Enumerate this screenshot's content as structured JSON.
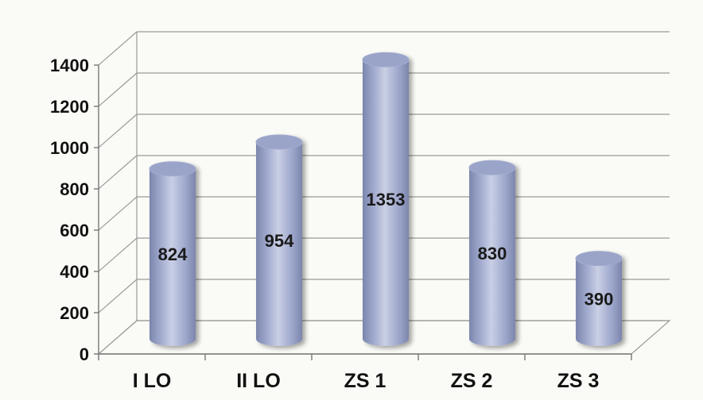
{
  "chart_data": {
    "type": "bar",
    "style": "3d-cylinder",
    "categories": [
      "I LO",
      "II LO",
      "ZS 1",
      "ZS 2",
      "ZS 3"
    ],
    "values": [
      824,
      954,
      1353,
      830,
      390
    ],
    "data_labels": [
      "824",
      "954",
      "1353",
      "830",
      "390"
    ],
    "title": "",
    "xlabel": "",
    "ylabel": "",
    "ylim": [
      0,
      1400
    ],
    "yticks": [
      0,
      200,
      400,
      600,
      800,
      1000,
      1200,
      1400
    ],
    "ytick_labels": [
      "0",
      "200",
      "400",
      "600",
      "800",
      "1000",
      "1200",
      "1400"
    ],
    "grid": true,
    "legend": "none",
    "colors": {
      "bar_light": "#c9cfe4",
      "bar_mid": "#a2abcf",
      "bar_dark": "#7c86ad",
      "bar_top": "#9aa3c8",
      "grid": "#9a9a9a",
      "background": "#fafbf6"
    }
  }
}
